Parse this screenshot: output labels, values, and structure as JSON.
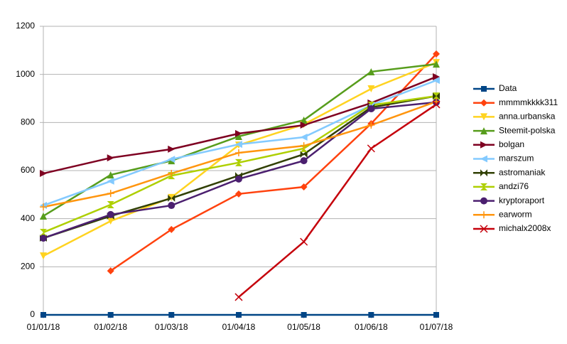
{
  "chart_data": {
    "type": "line",
    "x": [
      "01/01/18",
      "01/02/18",
      "01/03/18",
      "01/04/18",
      "01/05/18",
      "01/06/18",
      "01/07/18"
    ],
    "x_format": "dd/mm/yy",
    "ylim": [
      0,
      1200
    ],
    "yticks": [
      0,
      200,
      400,
      600,
      800,
      1000,
      1200
    ],
    "grid": true,
    "legend": "right",
    "series": [
      {
        "name": "Data",
        "color": "#004586",
        "marker": "square",
        "values": [
          0,
          0,
          0,
          0,
          0,
          0,
          0
        ]
      },
      {
        "name": "mmmmkkkk311",
        "color": "#ff420e",
        "marker": "diamond",
        "values": [
          null,
          183,
          355,
          503,
          532,
          795,
          1085
        ]
      },
      {
        "name": "anna.urbanska",
        "color": "#ffd320",
        "marker": "triangle-down",
        "values": [
          245,
          390,
          488,
          706,
          792,
          940,
          1049
        ]
      },
      {
        "name": "Steemit-polska",
        "color": "#579d1c",
        "marker": "triangle-up",
        "values": [
          411,
          582,
          641,
          742,
          810,
          1011,
          1043
        ]
      },
      {
        "name": "bolgan",
        "color": "#7e0021",
        "marker": "triangle-right",
        "values": [
          588,
          653,
          689,
          754,
          789,
          881,
          990
        ]
      },
      {
        "name": "marszum",
        "color": "#83caff",
        "marker": "triangle-left",
        "values": [
          455,
          556,
          647,
          709,
          739,
          872,
          975
        ]
      },
      {
        "name": "astromaniak",
        "color": "#314004",
        "marker": "bowtie",
        "values": [
          319,
          411,
          485,
          579,
          668,
          863,
          910
        ]
      },
      {
        "name": "andzi76",
        "color": "#aecf00",
        "marker": "hourglass",
        "values": [
          343,
          458,
          579,
          633,
          692,
          872,
          910
        ]
      },
      {
        "name": "kryptoraport",
        "color": "#4b1f6f",
        "marker": "circle",
        "values": [
          319,
          417,
          455,
          565,
          641,
          857,
          884
        ]
      },
      {
        "name": "earworm",
        "color": "#ff950e",
        "marker": "plus",
        "values": [
          449,
          505,
          588,
          674,
          703,
          789,
          887
        ]
      },
      {
        "name": "michalx2008x",
        "color": "#c5000b",
        "marker": "x",
        "values": [
          null,
          null,
          null,
          74,
          304,
          692,
          875
        ]
      }
    ]
  }
}
